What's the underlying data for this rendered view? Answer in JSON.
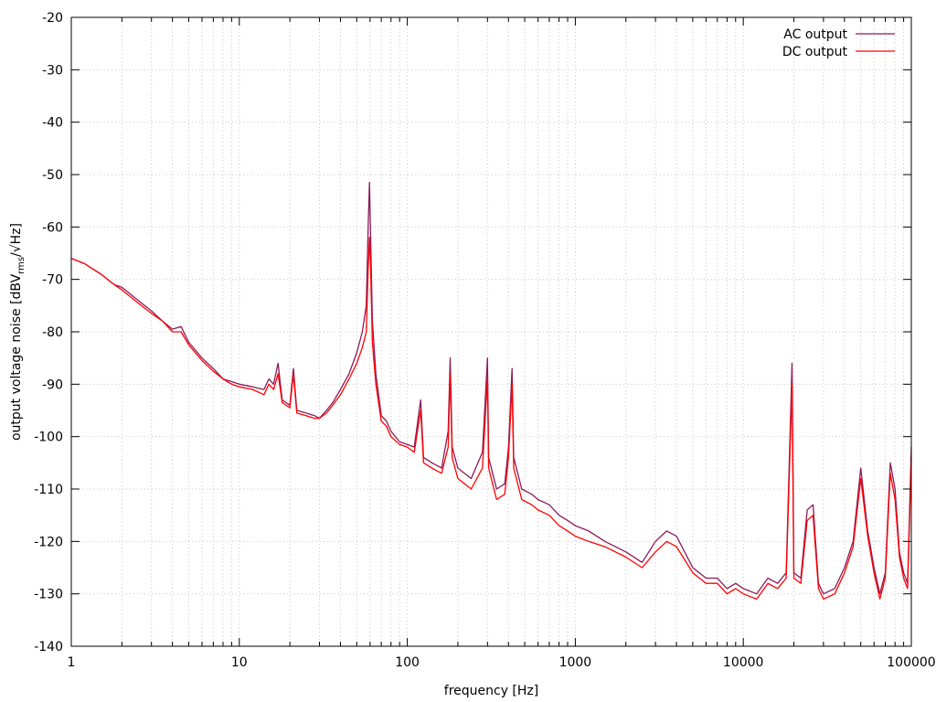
{
  "chart_data": {
    "type": "line",
    "xscale": "log",
    "xlim": [
      1,
      100000
    ],
    "ylim": [
      -140,
      -20
    ],
    "grid": true,
    "legend_position": "top-right",
    "xlabel": "frequency [Hz]",
    "ylabel": "output voltage noise [dBV",
    "ylabel_sub": "rms",
    "ylabel_tail": "/√Hz]",
    "x_ticks": [
      {
        "value": 1,
        "label": "1"
      },
      {
        "value": 10,
        "label": "10"
      },
      {
        "value": 100,
        "label": "100"
      },
      {
        "value": 1000,
        "label": "1000"
      },
      {
        "value": 10000,
        "label": "10000"
      },
      {
        "value": 100000,
        "label": "100000"
      }
    ],
    "y_ticks": [
      {
        "value": -20,
        "label": "-20"
      },
      {
        "value": -30,
        "label": "-30"
      },
      {
        "value": -40,
        "label": "-40"
      },
      {
        "value": -50,
        "label": "-50"
      },
      {
        "value": -60,
        "label": "-60"
      },
      {
        "value": -70,
        "label": "-70"
      },
      {
        "value": -80,
        "label": "-80"
      },
      {
        "value": -90,
        "label": "-90"
      },
      {
        "value": -100,
        "label": "-100"
      },
      {
        "value": -110,
        "label": "-110"
      },
      {
        "value": -120,
        "label": "-120"
      },
      {
        "value": -130,
        "label": "-130"
      },
      {
        "value": -140,
        "label": "-140"
      }
    ],
    "series": [
      {
        "name": "AC output",
        "color": "#8b1a5a",
        "points": [
          [
            1,
            -66
          ],
          [
            1.2,
            -67
          ],
          [
            1.5,
            -69
          ],
          [
            1.8,
            -71
          ],
          [
            2,
            -71.5
          ],
          [
            2.5,
            -74
          ],
          [
            3,
            -76
          ],
          [
            3.5,
            -78
          ],
          [
            4,
            -79.5
          ],
          [
            4.5,
            -79
          ],
          [
            5,
            -82
          ],
          [
            6,
            -85
          ],
          [
            7,
            -87
          ],
          [
            8,
            -89
          ],
          [
            9,
            -89.5
          ],
          [
            10,
            -90
          ],
          [
            12,
            -90.5
          ],
          [
            14,
            -91
          ],
          [
            15,
            -89
          ],
          [
            16,
            -90
          ],
          [
            17,
            -86
          ],
          [
            18,
            -93
          ],
          [
            20,
            -94
          ],
          [
            21,
            -87
          ],
          [
            22,
            -95
          ],
          [
            25,
            -95.5
          ],
          [
            28,
            -96
          ],
          [
            30,
            -96.5
          ],
          [
            33,
            -95
          ],
          [
            36,
            -93.5
          ],
          [
            40,
            -91
          ],
          [
            45,
            -88
          ],
          [
            50,
            -84
          ],
          [
            54,
            -80
          ],
          [
            57,
            -75
          ],
          [
            58.5,
            -60
          ],
          [
            59.5,
            -51.5
          ],
          [
            60.5,
            -62
          ],
          [
            62,
            -78
          ],
          [
            65,
            -88
          ],
          [
            70,
            -96
          ],
          [
            75,
            -97
          ],
          [
            80,
            -99
          ],
          [
            90,
            -101
          ],
          [
            100,
            -101.5
          ],
          [
            110,
            -102
          ],
          [
            120,
            -93
          ],
          [
            125,
            -104
          ],
          [
            140,
            -105
          ],
          [
            160,
            -106
          ],
          [
            175,
            -99
          ],
          [
            180,
            -85
          ],
          [
            185,
            -102
          ],
          [
            200,
            -106
          ],
          [
            240,
            -108
          ],
          [
            280,
            -103
          ],
          [
            300,
            -85
          ],
          [
            305,
            -104
          ],
          [
            340,
            -110
          ],
          [
            380,
            -109
          ],
          [
            400,
            -102
          ],
          [
            420,
            -87
          ],
          [
            430,
            -104
          ],
          [
            480,
            -110
          ],
          [
            550,
            -111
          ],
          [
            600,
            -112
          ],
          [
            700,
            -113
          ],
          [
            800,
            -115
          ],
          [
            900,
            -116
          ],
          [
            1000,
            -117
          ],
          [
            1200,
            -118
          ],
          [
            1500,
            -120
          ],
          [
            2000,
            -122
          ],
          [
            2500,
            -124
          ],
          [
            3000,
            -120
          ],
          [
            3500,
            -118
          ],
          [
            4000,
            -119
          ],
          [
            5000,
            -125
          ],
          [
            6000,
            -127
          ],
          [
            7000,
            -127
          ],
          [
            8000,
            -129
          ],
          [
            9000,
            -128
          ],
          [
            10000,
            -129
          ],
          [
            12000,
            -130
          ],
          [
            14000,
            -127
          ],
          [
            16000,
            -128
          ],
          [
            18000,
            -126
          ],
          [
            19500,
            -86
          ],
          [
            20000,
            -126
          ],
          [
            22000,
            -127
          ],
          [
            24000,
            -114
          ],
          [
            26000,
            -113
          ],
          [
            28000,
            -128
          ],
          [
            30000,
            -130
          ],
          [
            35000,
            -129
          ],
          [
            40000,
            -125
          ],
          [
            45000,
            -120
          ],
          [
            50000,
            -106
          ],
          [
            55000,
            -118
          ],
          [
            60000,
            -125
          ],
          [
            65000,
            -130
          ],
          [
            70000,
            -126
          ],
          [
            75000,
            -105
          ],
          [
            80000,
            -110
          ],
          [
            85000,
            -122
          ],
          [
            90000,
            -126
          ],
          [
            95000,
            -128
          ],
          [
            100000,
            -102
          ]
        ]
      },
      {
        "name": "DC output",
        "color": "#ff0000",
        "points": [
          [
            1,
            -66
          ],
          [
            1.2,
            -67
          ],
          [
            1.5,
            -69
          ],
          [
            1.8,
            -71
          ],
          [
            2,
            -72
          ],
          [
            2.5,
            -74.5
          ],
          [
            3,
            -76.5
          ],
          [
            3.5,
            -78
          ],
          [
            4,
            -80
          ],
          [
            4.5,
            -80
          ],
          [
            5,
            -82.5
          ],
          [
            6,
            -85.5
          ],
          [
            7,
            -87.5
          ],
          [
            8,
            -89
          ],
          [
            9,
            -90
          ],
          [
            10,
            -90.5
          ],
          [
            12,
            -91
          ],
          [
            14,
            -92
          ],
          [
            15,
            -90
          ],
          [
            16,
            -91
          ],
          [
            17,
            -88
          ],
          [
            18,
            -93.5
          ],
          [
            20,
            -94.5
          ],
          [
            21,
            -88
          ],
          [
            22,
            -95.5
          ],
          [
            25,
            -96
          ],
          [
            28,
            -96.5
          ],
          [
            30,
            -96.5
          ],
          [
            33,
            -95.5
          ],
          [
            36,
            -94
          ],
          [
            40,
            -92
          ],
          [
            45,
            -89
          ],
          [
            50,
            -86
          ],
          [
            54,
            -83
          ],
          [
            57,
            -80
          ],
          [
            58.5,
            -68
          ],
          [
            59.5,
            -62
          ],
          [
            60.5,
            -68
          ],
          [
            62,
            -82
          ],
          [
            65,
            -90
          ],
          [
            70,
            -97
          ],
          [
            75,
            -98
          ],
          [
            80,
            -100
          ],
          [
            90,
            -101.5
          ],
          [
            100,
            -102
          ],
          [
            110,
            -103
          ],
          [
            120,
            -95
          ],
          [
            125,
            -105
          ],
          [
            140,
            -106
          ],
          [
            160,
            -107
          ],
          [
            175,
            -102
          ],
          [
            180,
            -88
          ],
          [
            185,
            -104
          ],
          [
            200,
            -108
          ],
          [
            240,
            -110
          ],
          [
            280,
            -106
          ],
          [
            300,
            -89
          ],
          [
            305,
            -106
          ],
          [
            340,
            -112
          ],
          [
            380,
            -111
          ],
          [
            400,
            -104
          ],
          [
            420,
            -90
          ],
          [
            430,
            -106
          ],
          [
            480,
            -112
          ],
          [
            550,
            -113
          ],
          [
            600,
            -114
          ],
          [
            700,
            -115
          ],
          [
            800,
            -117
          ],
          [
            900,
            -118
          ],
          [
            1000,
            -119
          ],
          [
            1200,
            -120
          ],
          [
            1500,
            -121
          ],
          [
            2000,
            -123
          ],
          [
            2500,
            -125
          ],
          [
            3000,
            -122
          ],
          [
            3500,
            -120
          ],
          [
            4000,
            -121
          ],
          [
            5000,
            -126
          ],
          [
            6000,
            -128
          ],
          [
            7000,
            -128
          ],
          [
            8000,
            -130
          ],
          [
            9000,
            -129
          ],
          [
            10000,
            -130
          ],
          [
            12000,
            -131
          ],
          [
            14000,
            -128
          ],
          [
            16000,
            -129
          ],
          [
            18000,
            -127
          ],
          [
            19500,
            -90
          ],
          [
            20000,
            -127
          ],
          [
            22000,
            -128
          ],
          [
            24000,
            -116
          ],
          [
            26000,
            -115
          ],
          [
            28000,
            -129
          ],
          [
            30000,
            -131
          ],
          [
            35000,
            -130
          ],
          [
            40000,
            -126
          ],
          [
            45000,
            -121
          ],
          [
            50000,
            -108
          ],
          [
            55000,
            -119
          ],
          [
            60000,
            -126
          ],
          [
            65000,
            -131
          ],
          [
            70000,
            -127
          ],
          [
            75000,
            -107
          ],
          [
            80000,
            -112
          ],
          [
            85000,
            -123
          ],
          [
            90000,
            -127
          ],
          [
            95000,
            -129
          ],
          [
            100000,
            -104
          ]
        ]
      }
    ]
  }
}
